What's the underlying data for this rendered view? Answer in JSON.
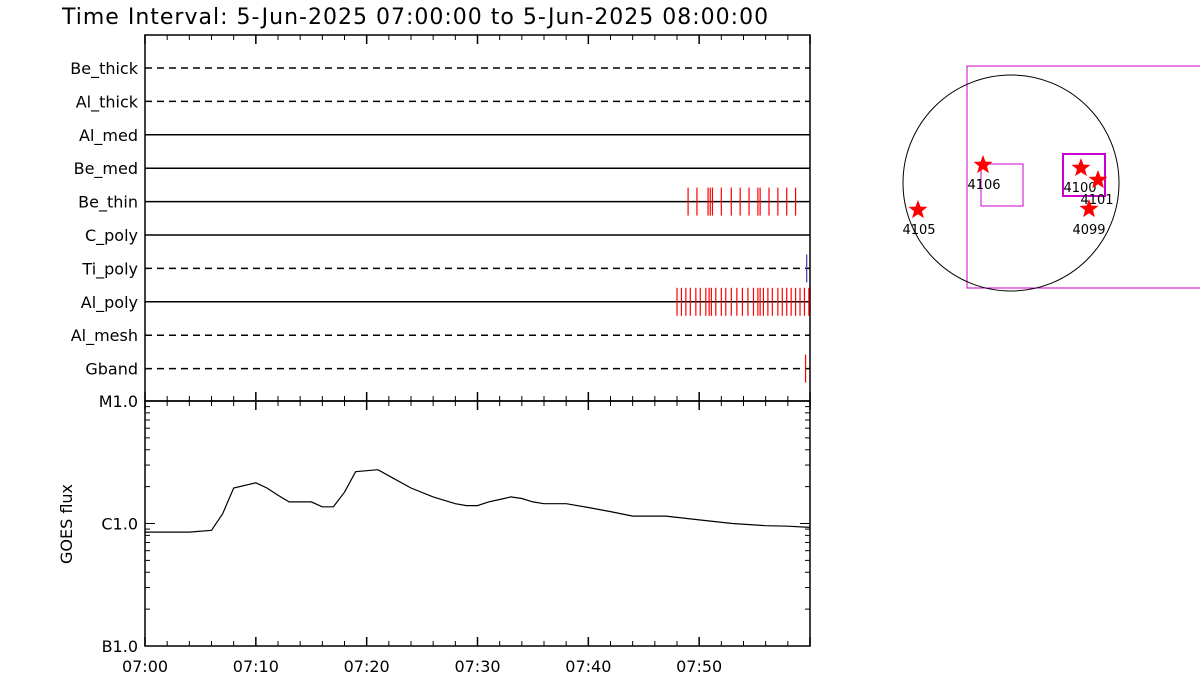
{
  "header": {
    "time_interval": "Time Interval:  5-Jun-2025 07:00:00 to  5-Jun-2025 08:00:00"
  },
  "chart_data": [
    {
      "type": "timeline",
      "x_range_minutes": [
        0,
        60
      ],
      "lanes": [
        {
          "name": "Be_thick",
          "style": "dashed",
          "events": []
        },
        {
          "name": "Al_thick",
          "style": "dashed",
          "events": []
        },
        {
          "name": "Al_med",
          "style": "solid",
          "events": []
        },
        {
          "name": "Be_med",
          "style": "solid",
          "events": []
        },
        {
          "name": "Be_thin",
          "style": "solid",
          "color": "#ff0000",
          "events": [
            49.0,
            49.8,
            50.8,
            51.0,
            51.2,
            52.0,
            52.9,
            53.7,
            54.5,
            55.3,
            55.5,
            56.3,
            57.1,
            57.9,
            58.7
          ]
        },
        {
          "name": "C_poly",
          "style": "solid",
          "events": []
        },
        {
          "name": "Ti_poly",
          "style": "dashed",
          "color": "#3a3aa8",
          "events": [
            59.7
          ]
        },
        {
          "name": "Al_poly",
          "style": "solid",
          "color": "#ff0000",
          "events": [
            48.0,
            48.4,
            48.8,
            49.2,
            49.7,
            50.1,
            50.6,
            50.9,
            51.1,
            51.5,
            52.0,
            52.4,
            52.9,
            53.4,
            53.9,
            54.4,
            54.9,
            55.3,
            55.5,
            55.8,
            56.2,
            56.6,
            57.1,
            57.5,
            57.9,
            58.3,
            58.7,
            59.1,
            59.5,
            59.9
          ]
        },
        {
          "name": "Al_mesh",
          "style": "dashed",
          "events": []
        },
        {
          "name": "Gband",
          "style": "dashed",
          "color": "#ff0000",
          "events": [
            59.6
          ]
        }
      ]
    },
    {
      "type": "line",
      "ylabel": "GOES flux",
      "y_scale": "log",
      "y_ticks": [
        "B1.0",
        "C1.0",
        "M1.0"
      ],
      "x_ticks": [
        "07:00",
        "07:10",
        "07:20",
        "07:30",
        "07:40",
        "07:50"
      ],
      "x_range_minutes": [
        0,
        60
      ],
      "x_minutes": [
        0,
        2,
        4,
        6,
        7,
        8,
        10,
        11,
        12,
        13,
        14,
        15,
        16,
        17,
        18,
        19,
        20,
        21,
        22,
        24,
        26,
        28,
        29,
        30,
        31,
        32,
        33,
        34,
        35,
        36,
        38,
        40,
        42,
        44,
        47,
        50,
        53,
        56,
        58,
        60
      ],
      "flux_wm2": [
        8.5e-07,
        8.5e-07,
        8.5e-07,
        8.8e-07,
        1.2e-06,
        1.95e-06,
        2.15e-06,
        1.95e-06,
        1.7e-06,
        1.5e-06,
        1.5e-06,
        1.5e-06,
        1.37e-06,
        1.37e-06,
        1.8e-06,
        2.65e-06,
        2.7e-06,
        2.75e-06,
        2.45e-06,
        1.95e-06,
        1.65e-06,
        1.45e-06,
        1.4e-06,
        1.4e-06,
        1.5e-06,
        1.57e-06,
        1.65e-06,
        1.6e-06,
        1.5e-06,
        1.45e-06,
        1.45e-06,
        1.35e-06,
        1.25e-06,
        1.15e-06,
        1.15e-06,
        1.07e-06,
        1e-06,
        9.6e-07,
        9.5e-07,
        9.3e-07
      ]
    },
    {
      "type": "solar-disk-map",
      "regions": [
        {
          "label": "4106"
        },
        {
          "label": "4105"
        },
        {
          "label": "4100"
        },
        {
          "label": "4101"
        },
        {
          "label": "4099"
        }
      ]
    }
  ],
  "colors": {
    "axis": "#000000",
    "event_red": "#ff0000",
    "event_blue": "#3a3aa8",
    "star": "#ff0000",
    "fov_box": "#cc00cc"
  }
}
